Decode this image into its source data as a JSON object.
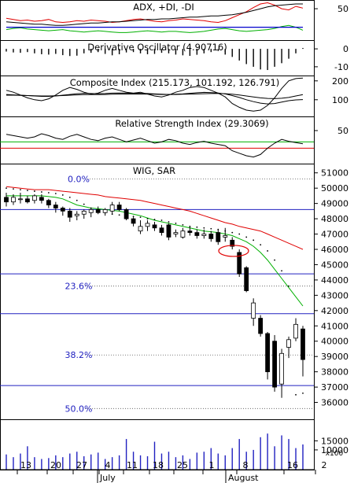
{
  "chart_data": [
    {
      "type": "line",
      "title": "ADX, +DI, -DI",
      "y_ticks": [
        {
          "label": "50",
          "value": 50
        }
      ],
      "ylim": [
        0,
        62
      ],
      "series": [
        {
          "color": "#e00000",
          "values": [
            34,
            32,
            30,
            31,
            29,
            30,
            32,
            28,
            27,
            28,
            30,
            29,
            31,
            30,
            29,
            27,
            28,
            30,
            32,
            33,
            31,
            29,
            28,
            30,
            31,
            33,
            32,
            31,
            30,
            28,
            27,
            30,
            35,
            40,
            45,
            52,
            58,
            60,
            56,
            50,
            48,
            54,
            51
          ]
        },
        {
          "color": "#000000",
          "values": [
            28,
            27,
            26,
            25,
            24,
            24,
            23,
            22,
            22,
            23,
            24,
            25,
            26,
            26,
            27,
            28,
            28,
            29,
            30,
            31,
            32,
            32,
            33,
            33,
            34,
            35,
            36,
            36,
            37,
            38,
            38,
            39,
            40,
            42,
            44,
            47,
            50,
            53,
            55,
            56,
            57,
            58,
            58
          ]
        },
        {
          "color": "#00b000",
          "values": [
            15,
            17,
            18,
            16,
            15,
            14,
            13,
            14,
            15,
            13,
            12,
            11,
            12,
            13,
            12,
            11,
            10,
            10,
            11,
            12,
            13,
            12,
            11,
            12,
            12,
            11,
            10,
            11,
            12,
            14,
            16,
            17,
            15,
            13,
            12,
            13,
            14,
            15,
            17,
            20,
            22,
            19,
            14
          ]
        },
        {
          "color": "#0000cc",
          "values": [
            19,
            19,
            19,
            19,
            19,
            19,
            19,
            19,
            19,
            19,
            19,
            19,
            19,
            19,
            19,
            19,
            19,
            19,
            19,
            19,
            19,
            19,
            19,
            19,
            19,
            19,
            19,
            19,
            19,
            19,
            19,
            19,
            19,
            19,
            19,
            19,
            19,
            19,
            19,
            19,
            19,
            19,
            19
          ]
        }
      ]
    },
    {
      "type": "bar",
      "title": "Derivative Oscillator (4.90716)",
      "y_ticks": [
        {
          "label": "0",
          "value": 0
        },
        {
          "label": "-10",
          "value": -10
        }
      ],
      "ylim": [
        -14,
        4
      ],
      "values": [
        -1.5,
        -2,
        -2.2,
        -1.8,
        -2.5,
        -3,
        -3.2,
        -2.8,
        -3.5,
        -4,
        -3.8,
        -2.5,
        -2.2,
        -1.8,
        -2.8,
        -3.6,
        -3,
        -2,
        -1.8,
        -2.5,
        -3,
        -2.8,
        -2.2,
        -2.5,
        -3.2,
        -3.6,
        -3.9,
        -3.3,
        -2.5,
        -1.8,
        -1.2,
        -3.2,
        -4.5,
        -6.5,
        -8.5,
        -10,
        -11.5,
        -11.8,
        -10,
        -8,
        -5.5,
        -2.5,
        0.5
      ]
    },
    {
      "type": "line",
      "title": "Composite Index (215.173, 101.192, 126.791)",
      "y_ticks": [
        {
          "label": "200",
          "value": 200
        },
        {
          "label": "100",
          "value": 100
        }
      ],
      "ylim": [
        20,
        220
      ],
      "series": [
        {
          "color": "#000000",
          "values": [
            150,
            140,
            125,
            110,
            100,
            95,
            105,
            125,
            150,
            165,
            155,
            140,
            130,
            135,
            150,
            160,
            150,
            140,
            135,
            140,
            130,
            120,
            115,
            125,
            140,
            150,
            165,
            170,
            165,
            150,
            135,
            115,
            80,
            60,
            45,
            40,
            45,
            70,
            110,
            160,
            200,
            212,
            215
          ]
        },
        {
          "color": "#000000",
          "values": [
            128,
            126,
            124,
            122,
            120,
            118,
            118,
            120,
            124,
            128,
            132,
            134,
            133,
            132,
            133,
            135,
            136,
            135,
            134,
            134,
            133,
            131,
            129,
            128,
            129,
            131,
            134,
            137,
            139,
            138,
            136,
            131,
            122,
            112,
            100,
            90,
            82,
            78,
            80,
            88,
            95,
            99,
            101
          ]
        },
        {
          "color": "#000000",
          "values": [
            124,
            124,
            123,
            122,
            121,
            120,
            120,
            121,
            122,
            124,
            126,
            127,
            127,
            127,
            128,
            129,
            130,
            130,
            130,
            130,
            130,
            129,
            128,
            128,
            128,
            129,
            130,
            131,
            132,
            133,
            133,
            132,
            129,
            125,
            120,
            115,
            110,
            107,
            106,
            108,
            112,
            120,
            127
          ]
        }
      ]
    },
    {
      "type": "line",
      "title": "Relative Strength Index (29.3069)",
      "y_ticks": [
        {
          "label": "50",
          "value": 50
        }
      ],
      "ylim": [
        0,
        70
      ],
      "reference_lines": [
        {
          "value": 32,
          "color": "#00b000"
        },
        {
          "value": 22,
          "color": "#e00000"
        }
      ],
      "series": [
        {
          "color": "#000000",
          "values": [
            44,
            42,
            40,
            38,
            40,
            45,
            42,
            38,
            36,
            41,
            44,
            40,
            36,
            34,
            38,
            40,
            36,
            32,
            35,
            38,
            34,
            30,
            32,
            36,
            34,
            30,
            28,
            31,
            33,
            30,
            28,
            26,
            18,
            14,
            10,
            8,
            12,
            22,
            30,
            36,
            33,
            31,
            29
          ]
        }
      ]
    },
    {
      "type": "candlestick",
      "title": "WIG, SAR",
      "ylim": [
        35000,
        51500
      ],
      "y_ticks": [
        {
          "label": "51000",
          "value": 51000
        },
        {
          "label": "50000",
          "value": 50000
        },
        {
          "label": "49000",
          "value": 49000
        },
        {
          "label": "48000",
          "value": 48000
        },
        {
          "label": "47000",
          "value": 47000
        },
        {
          "label": "46000",
          "value": 46000
        },
        {
          "label": "45000",
          "value": 45000
        },
        {
          "label": "44000",
          "value": 44000
        },
        {
          "label": "43000",
          "value": 43000
        },
        {
          "label": "42000",
          "value": 42000
        },
        {
          "label": "41000",
          "value": 41000
        },
        {
          "label": "40000",
          "value": 40000
        },
        {
          "label": "39000",
          "value": 39000
        },
        {
          "label": "38000",
          "value": 38000
        },
        {
          "label": "37000",
          "value": 37000
        },
        {
          "label": "36000",
          "value": 36000
        }
      ],
      "fib_levels": [
        {
          "label": "0.0%",
          "value": 50600
        },
        {
          "label": "23.6%",
          "value": 43600
        },
        {
          "label": "38.2%",
          "value": 39100
        },
        {
          "label": "50.0%",
          "value": 35600
        }
      ],
      "horizontal_lines": [
        48600,
        44400,
        41800,
        37100
      ],
      "ohlc": [
        {
          "o": 49400,
          "h": 49700,
          "l": 48800,
          "c": 49100
        },
        {
          "o": 49100,
          "h": 49600,
          "l": 48900,
          "c": 49400
        },
        {
          "o": 49300,
          "h": 49700,
          "l": 49000,
          "c": 49300
        },
        {
          "o": 49300,
          "h": 49500,
          "l": 49000,
          "c": 49100
        },
        {
          "o": 49200,
          "h": 49600,
          "l": 49000,
          "c": 49500
        },
        {
          "o": 49400,
          "h": 49600,
          "l": 49000,
          "c": 49200
        },
        {
          "o": 49200,
          "h": 49300,
          "l": 48700,
          "c": 48900
        },
        {
          "o": 48900,
          "h": 49100,
          "l": 48400,
          "c": 48700
        },
        {
          "o": 48700,
          "h": 48800,
          "l": 48200,
          "c": 48500
        },
        {
          "o": 48500,
          "h": 48700,
          "l": 47800,
          "c": 48100
        },
        {
          "o": 48200,
          "h": 48500,
          "l": 47900,
          "c": 48300
        },
        {
          "o": 48300,
          "h": 48600,
          "l": 48000,
          "c": 48500
        },
        {
          "o": 48400,
          "h": 48700,
          "l": 48100,
          "c": 48600
        },
        {
          "o": 48600,
          "h": 48800,
          "l": 48300,
          "c": 48400
        },
        {
          "o": 48400,
          "h": 48700,
          "l": 48200,
          "c": 48600
        },
        {
          "o": 48500,
          "h": 49100,
          "l": 48300,
          "c": 48900
        },
        {
          "o": 48900,
          "h": 49100,
          "l": 48500,
          "c": 48600
        },
        {
          "o": 48600,
          "h": 48700,
          "l": 47900,
          "c": 48000
        },
        {
          "o": 48000,
          "h": 48100,
          "l": 47500,
          "c": 47700
        },
        {
          "o": 47200,
          "h": 47900,
          "l": 47000,
          "c": 47500
        },
        {
          "o": 47500,
          "h": 47900,
          "l": 47200,
          "c": 47700
        },
        {
          "o": 47600,
          "h": 47800,
          "l": 47200,
          "c": 47400
        },
        {
          "o": 47400,
          "h": 47600,
          "l": 46900,
          "c": 47100
        },
        {
          "o": 47600,
          "h": 47700,
          "l": 46600,
          "c": 46800
        },
        {
          "o": 47000,
          "h": 47300,
          "l": 46800,
          "c": 47100
        },
        {
          "o": 46800,
          "h": 47400,
          "l": 46700,
          "c": 47200
        },
        {
          "o": 47200,
          "h": 47500,
          "l": 46900,
          "c": 47100
        },
        {
          "o": 47100,
          "h": 47300,
          "l": 46700,
          "c": 46900
        },
        {
          "o": 46900,
          "h": 47300,
          "l": 46700,
          "c": 47000
        },
        {
          "o": 47000,
          "h": 47200,
          "l": 46500,
          "c": 46700
        },
        {
          "o": 47100,
          "h": 47300,
          "l": 46300,
          "c": 46500
        },
        {
          "o": 46800,
          "h": 47400,
          "l": 46500,
          "c": 46900
        },
        {
          "o": 46600,
          "h": 46800,
          "l": 46000,
          "c": 46200
        },
        {
          "o": 45800,
          "h": 46000,
          "l": 44200,
          "c": 44400
        },
        {
          "o": 44800,
          "h": 44900,
          "l": 43200,
          "c": 43300
        },
        {
          "o": 41500,
          "h": 42800,
          "l": 41000,
          "c": 42500
        },
        {
          "o": 41500,
          "h": 41700,
          "l": 40300,
          "c": 40500
        },
        {
          "o": 40500,
          "h": 40600,
          "l": 37500,
          "c": 38000
        },
        {
          "o": 40000,
          "h": 40400,
          "l": 36700,
          "c": 37000
        },
        {
          "o": 37200,
          "h": 39500,
          "l": 36300,
          "c": 39200
        },
        {
          "o": 39600,
          "h": 40300,
          "l": 38900,
          "c": 40100
        },
        {
          "o": 40200,
          "h": 41500,
          "l": 40000,
          "c": 41100
        },
        {
          "o": 40800,
          "h": 41000,
          "l": 37700,
          "c": 38800
        }
      ],
      "ma_red": [
        50100,
        50050,
        50000,
        49950,
        49900,
        49900,
        49900,
        49850,
        49800,
        49750,
        49700,
        49650,
        49600,
        49550,
        49450,
        49400,
        49350,
        49300,
        49250,
        49200,
        49100,
        49000,
        48900,
        48800,
        48700,
        48600,
        48500,
        48350,
        48200,
        48050,
        47900,
        47750,
        47650,
        47500,
        47400,
        47300,
        47200,
        47000,
        46800,
        46600,
        46400,
        46200,
        46000
      ],
      "ma_green": [
        49500,
        49500,
        49500,
        49500,
        49500,
        49500,
        49450,
        49400,
        49300,
        49100,
        48900,
        48800,
        48700,
        48650,
        48600,
        48550,
        48500,
        48400,
        48300,
        48200,
        48050,
        47900,
        47800,
        47700,
        47600,
        47500,
        47400,
        47300,
        47200,
        47150,
        47100,
        47000,
        46900,
        46700,
        46500,
        46200,
        45800,
        45300,
        44700,
        44100,
        43500,
        42900,
        42300
      ],
      "sar": [
        50000,
        49950,
        49900,
        49850,
        49800,
        49750,
        49700,
        49650,
        49550,
        49400,
        49200,
        48950,
        48700,
        48500,
        48400,
        48300,
        48250,
        48200,
        48150,
        48100,
        48000,
        47950,
        47900,
        47800,
        47700,
        47600,
        47500,
        47450,
        47400,
        47350,
        47300,
        47200,
        47100,
        47000,
        46800,
        46600,
        46300,
        45900,
        45300,
        44600,
        43600,
        36500,
        36600
      ],
      "annotation_ellipse_value": 45900
    },
    {
      "type": "bar",
      "title": "",
      "y_ticks": [
        {
          "label": "15000",
          "value": 15000
        },
        {
          "label": "10000",
          "value": 10000
        }
      ],
      "ylim": [
        0,
        26000
      ],
      "unit_label": "x100",
      "values": [
        7500,
        6000,
        8000,
        12000,
        6000,
        5000,
        5500,
        7000,
        6000,
        8000,
        9000,
        6500,
        7500,
        8500,
        5000,
        6000,
        7000,
        16000,
        9000,
        7000,
        6500,
        14500,
        8000,
        9000,
        6000,
        7000,
        5000,
        8500,
        9000,
        11000,
        8000,
        7000,
        11000,
        16000,
        9000,
        10000,
        17000,
        19000,
        12000,
        18000,
        16000,
        11000,
        13000
      ]
    }
  ],
  "x_axis": {
    "day_ticks": [
      "13",
      "20",
      "27",
      "4",
      "11",
      "18",
      "25",
      "1",
      "8",
      "16",
      "2"
    ],
    "month_labels": [
      "July",
      "August"
    ]
  }
}
